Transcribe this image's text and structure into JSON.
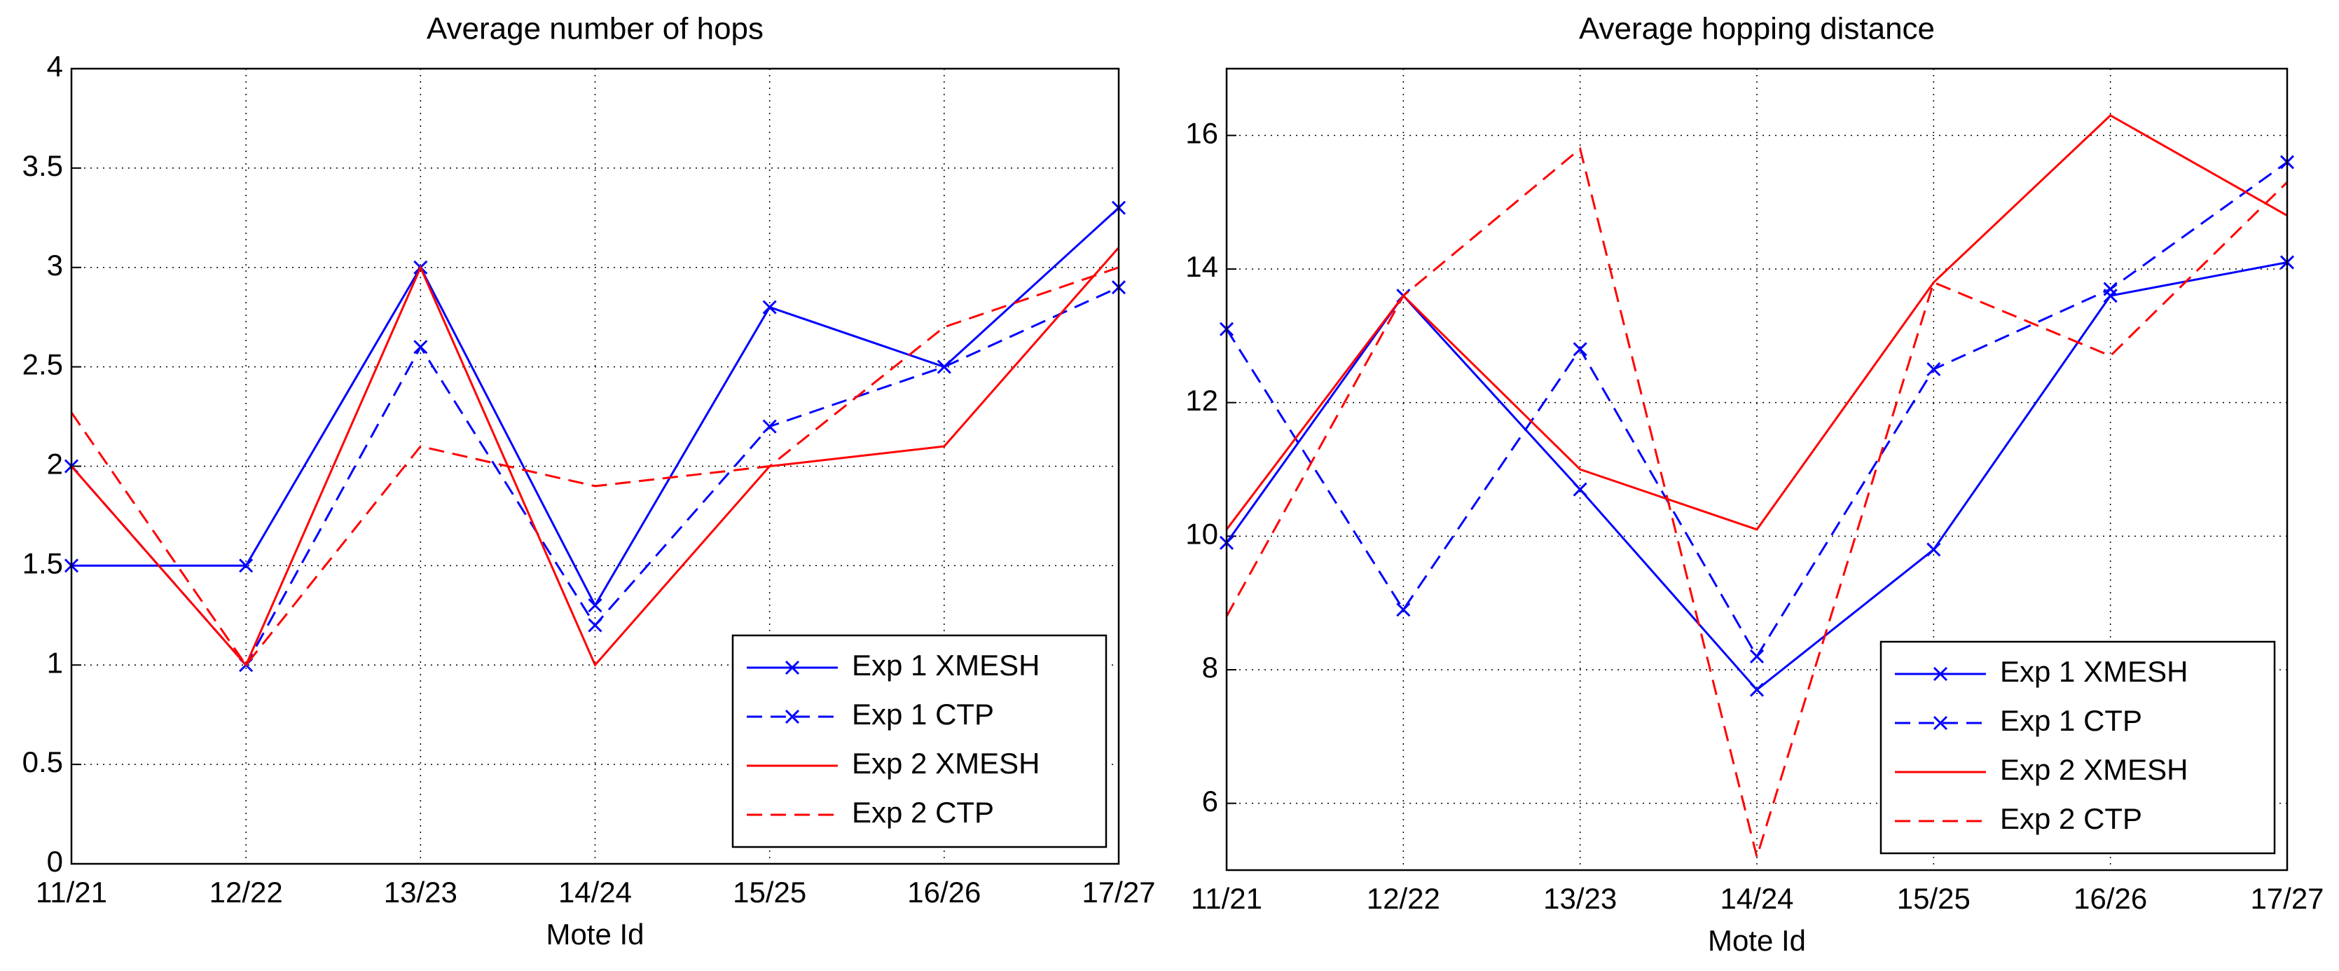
{
  "chart_data": [
    {
      "type": "line",
      "title": "Average number of hops",
      "xlabel": "Mote Id",
      "categories": [
        "11/21",
        "12/22",
        "13/23",
        "14/24",
        "15/25",
        "16/26",
        "17/27"
      ],
      "ylim": [
        0,
        4
      ],
      "yticks": [
        0,
        0.5,
        1,
        1.5,
        2,
        2.5,
        3,
        3.5,
        4
      ],
      "grid": true,
      "legend": "lower right",
      "series": [
        {
          "name": "Exp 1 XMESH",
          "color": "#0000ff",
          "dash": "solid",
          "marker": "x",
          "values": [
            1.5,
            1.5,
            3.0,
            1.3,
            2.8,
            2.5,
            3.3
          ]
        },
        {
          "name": "Exp 1 CTP",
          "color": "#0000ff",
          "dash": "dashed",
          "marker": "x",
          "values": [
            2.0,
            1.0,
            2.6,
            1.2,
            2.2,
            2.5,
            2.9
          ]
        },
        {
          "name": "Exp 2 XMESH",
          "color": "#ff0000",
          "dash": "solid",
          "marker": "none",
          "values": [
            2.0,
            1.0,
            3.0,
            1.0,
            2.0,
            2.1,
            3.1
          ]
        },
        {
          "name": "Exp 2 CTP",
          "color": "#ff0000",
          "dash": "dashed",
          "marker": "none",
          "values": [
            2.27,
            1.0,
            2.1,
            1.9,
            2.0,
            2.7,
            3.0
          ]
        }
      ]
    },
    {
      "type": "line",
      "title": "Average hopping distance",
      "xlabel": "Mote Id",
      "categories": [
        "11/21",
        "12/22",
        "13/23",
        "14/24",
        "15/25",
        "16/26",
        "17/27"
      ],
      "ylim": [
        5,
        17
      ],
      "yticks": [
        6,
        8,
        10,
        12,
        14,
        16
      ],
      "grid": true,
      "legend": "lower right",
      "series": [
        {
          "name": "Exp 1 XMESH",
          "color": "#0000ff",
          "dash": "solid",
          "marker": "x",
          "values": [
            9.9,
            13.6,
            10.7,
            7.7,
            9.8,
            13.6,
            14.1
          ]
        },
        {
          "name": "Exp 1 CTP",
          "color": "#0000ff",
          "dash": "dashed",
          "marker": "x",
          "values": [
            13.1,
            8.9,
            12.8,
            8.2,
            12.5,
            13.7,
            15.6
          ]
        },
        {
          "name": "Exp 2 XMESH",
          "color": "#ff0000",
          "dash": "solid",
          "marker": "none",
          "values": [
            10.1,
            13.6,
            11.0,
            10.1,
            13.8,
            16.3,
            14.8
          ]
        },
        {
          "name": "Exp 2 CTP",
          "color": "#ff0000",
          "dash": "dashed",
          "marker": "none",
          "values": [
            8.8,
            13.6,
            15.8,
            5.2,
            13.8,
            12.7,
            15.3
          ]
        }
      ]
    }
  ]
}
